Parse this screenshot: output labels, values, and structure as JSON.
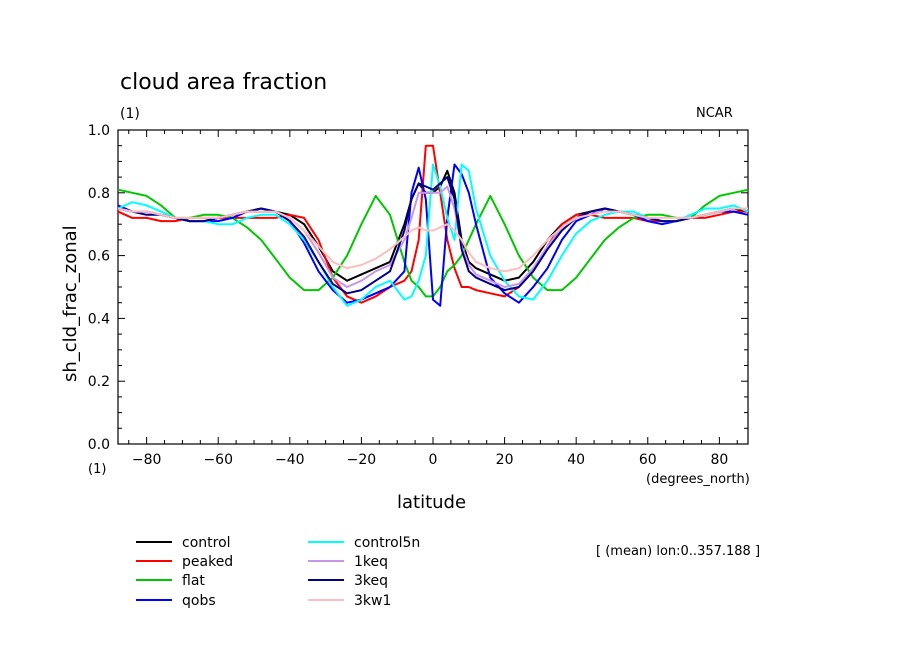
{
  "chart_data": {
    "type": "line",
    "title": "cloud area fraction",
    "subtitle": "(1)",
    "source_label": "NCAR",
    "ylabel": "sh_cld_frac_zonal",
    "xlabel": "latitude",
    "x_units": "(degrees_north)",
    "y_units": "(1)",
    "note": "[ (mean) lon:0..357.188 ]",
    "xlim": [
      -88,
      88
    ],
    "ylim": [
      0.0,
      1.0
    ],
    "x_ticks": [
      -80,
      -60,
      -40,
      -20,
      0,
      20,
      40,
      60,
      80
    ],
    "x_tick_labels": [
      "−80",
      "−60",
      "−40",
      "−20",
      "0",
      "20",
      "40",
      "60",
      "80"
    ],
    "y_ticks": [
      0.0,
      0.2,
      0.4,
      0.6,
      0.8,
      1.0
    ],
    "y_tick_labels": [
      "0.0",
      "0.2",
      "0.4",
      "0.6",
      "0.8",
      "1.0"
    ],
    "x": [
      -88,
      -84,
      -80,
      -76,
      -72,
      -68,
      -64,
      -60,
      -56,
      -52,
      -48,
      -44,
      -40,
      -36,
      -32,
      -28,
      -24,
      -20,
      -16,
      -12,
      -8,
      -6,
      -4,
      -2,
      0,
      2,
      4,
      6,
      8,
      10,
      12,
      16,
      20,
      24,
      28,
      32,
      36,
      40,
      44,
      48,
      52,
      56,
      60,
      64,
      68,
      72,
      76,
      80,
      84,
      88
    ],
    "series": [
      {
        "name": "control",
        "color": "#000000",
        "values": [
          0.75,
          0.74,
          0.74,
          0.73,
          0.72,
          0.71,
          0.71,
          0.72,
          0.73,
          0.74,
          0.74,
          0.74,
          0.73,
          0.7,
          0.63,
          0.55,
          0.52,
          0.54,
          0.56,
          0.58,
          0.7,
          0.78,
          0.83,
          0.8,
          0.8,
          0.82,
          0.87,
          0.8,
          0.65,
          0.58,
          0.56,
          0.54,
          0.52,
          0.53,
          0.58,
          0.65,
          0.7,
          0.73,
          0.74,
          0.75,
          0.74,
          0.73,
          0.72,
          0.71,
          0.71,
          0.72,
          0.73,
          0.74,
          0.75,
          0.74
        ]
      },
      {
        "name": "peaked",
        "color": "#ff0000",
        "values": [
          0.74,
          0.72,
          0.72,
          0.71,
          0.71,
          0.72,
          0.72,
          0.72,
          0.72,
          0.72,
          0.72,
          0.72,
          0.73,
          0.72,
          0.65,
          0.53,
          0.47,
          0.45,
          0.47,
          0.5,
          0.52,
          0.55,
          0.65,
          0.95,
          0.95,
          0.8,
          0.65,
          0.56,
          0.5,
          0.5,
          0.49,
          0.48,
          0.47,
          0.5,
          0.55,
          0.63,
          0.7,
          0.73,
          0.73,
          0.72,
          0.72,
          0.72,
          0.71,
          0.71,
          0.71,
          0.72,
          0.72,
          0.73,
          0.74,
          0.74
        ]
      },
      {
        "name": "flat",
        "color": "#00c800",
        "values": [
          0.81,
          0.8,
          0.79,
          0.76,
          0.72,
          0.72,
          0.73,
          0.73,
          0.72,
          0.69,
          0.65,
          0.59,
          0.53,
          0.49,
          0.49,
          0.53,
          0.6,
          0.7,
          0.79,
          0.73,
          0.58,
          0.52,
          0.5,
          0.47,
          0.47,
          0.5,
          0.55,
          0.57,
          0.6,
          0.65,
          0.7,
          0.79,
          0.7,
          0.6,
          0.53,
          0.49,
          0.49,
          0.53,
          0.59,
          0.65,
          0.69,
          0.72,
          0.73,
          0.73,
          0.72,
          0.72,
          0.76,
          0.79,
          0.8,
          0.81
        ]
      },
      {
        "name": "qobs",
        "color": "#0000ff",
        "values": [
          0.76,
          0.74,
          0.74,
          0.73,
          0.72,
          0.71,
          0.71,
          0.71,
          0.72,
          0.74,
          0.75,
          0.74,
          0.71,
          0.64,
          0.55,
          0.49,
          0.45,
          0.46,
          0.48,
          0.5,
          0.55,
          0.8,
          0.88,
          0.78,
          0.46,
          0.44,
          0.72,
          0.89,
          0.86,
          0.8,
          0.7,
          0.53,
          0.48,
          0.45,
          0.5,
          0.56,
          0.65,
          0.71,
          0.73,
          0.75,
          0.74,
          0.73,
          0.71,
          0.7,
          0.71,
          0.72,
          0.73,
          0.74,
          0.74,
          0.73
        ]
      },
      {
        "name": "control5n",
        "color": "#00ffff",
        "values": [
          0.75,
          0.77,
          0.76,
          0.74,
          0.72,
          0.71,
          0.71,
          0.7,
          0.7,
          0.72,
          0.73,
          0.73,
          0.7,
          0.65,
          0.58,
          0.5,
          0.44,
          0.46,
          0.5,
          0.52,
          0.46,
          0.47,
          0.52,
          0.6,
          0.89,
          0.82,
          0.72,
          0.65,
          0.89,
          0.87,
          0.75,
          0.6,
          0.52,
          0.47,
          0.46,
          0.52,
          0.6,
          0.67,
          0.71,
          0.73,
          0.74,
          0.74,
          0.72,
          0.71,
          0.71,
          0.73,
          0.75,
          0.75,
          0.76,
          0.74
        ]
      },
      {
        "name": "1keq",
        "color": "#c896e6",
        "values": [
          0.75,
          0.74,
          0.74,
          0.73,
          0.72,
          0.71,
          0.71,
          0.72,
          0.73,
          0.74,
          0.74,
          0.74,
          0.72,
          0.68,
          0.61,
          0.53,
          0.5,
          0.52,
          0.55,
          0.57,
          0.65,
          0.72,
          0.8,
          0.8,
          0.8,
          0.8,
          0.82,
          0.75,
          0.63,
          0.57,
          0.54,
          0.52,
          0.5,
          0.51,
          0.56,
          0.63,
          0.69,
          0.72,
          0.74,
          0.74,
          0.74,
          0.73,
          0.72,
          0.71,
          0.71,
          0.72,
          0.73,
          0.74,
          0.75,
          0.75
        ]
      },
      {
        "name": "3keq",
        "color": "#00008c",
        "values": [
          0.75,
          0.74,
          0.73,
          0.73,
          0.72,
          0.71,
          0.71,
          0.72,
          0.73,
          0.74,
          0.75,
          0.74,
          0.71,
          0.66,
          0.58,
          0.51,
          0.48,
          0.49,
          0.52,
          0.55,
          0.68,
          0.78,
          0.83,
          0.82,
          0.81,
          0.83,
          0.85,
          0.78,
          0.62,
          0.55,
          0.53,
          0.51,
          0.49,
          0.5,
          0.55,
          0.62,
          0.68,
          0.72,
          0.74,
          0.75,
          0.74,
          0.73,
          0.72,
          0.71,
          0.71,
          0.72,
          0.73,
          0.74,
          0.75,
          0.75
        ]
      },
      {
        "name": "3kw1",
        "color": "#ffbebe",
        "values": [
          0.75,
          0.74,
          0.74,
          0.73,
          0.72,
          0.72,
          0.72,
          0.72,
          0.73,
          0.74,
          0.74,
          0.74,
          0.72,
          0.68,
          0.63,
          0.58,
          0.56,
          0.57,
          0.59,
          0.62,
          0.66,
          0.68,
          0.69,
          0.68,
          0.68,
          0.69,
          0.7,
          0.68,
          0.65,
          0.61,
          0.58,
          0.56,
          0.55,
          0.56,
          0.6,
          0.65,
          0.69,
          0.72,
          0.73,
          0.74,
          0.74,
          0.73,
          0.72,
          0.72,
          0.72,
          0.72,
          0.73,
          0.74,
          0.75,
          0.75
        ]
      }
    ],
    "legend": {
      "columns": [
        [
          "control",
          "peaked",
          "flat",
          "qobs"
        ],
        [
          "control5n",
          "1keq",
          "3keq",
          "3kw1"
        ]
      ],
      "placement": "bottom-left"
    }
  }
}
